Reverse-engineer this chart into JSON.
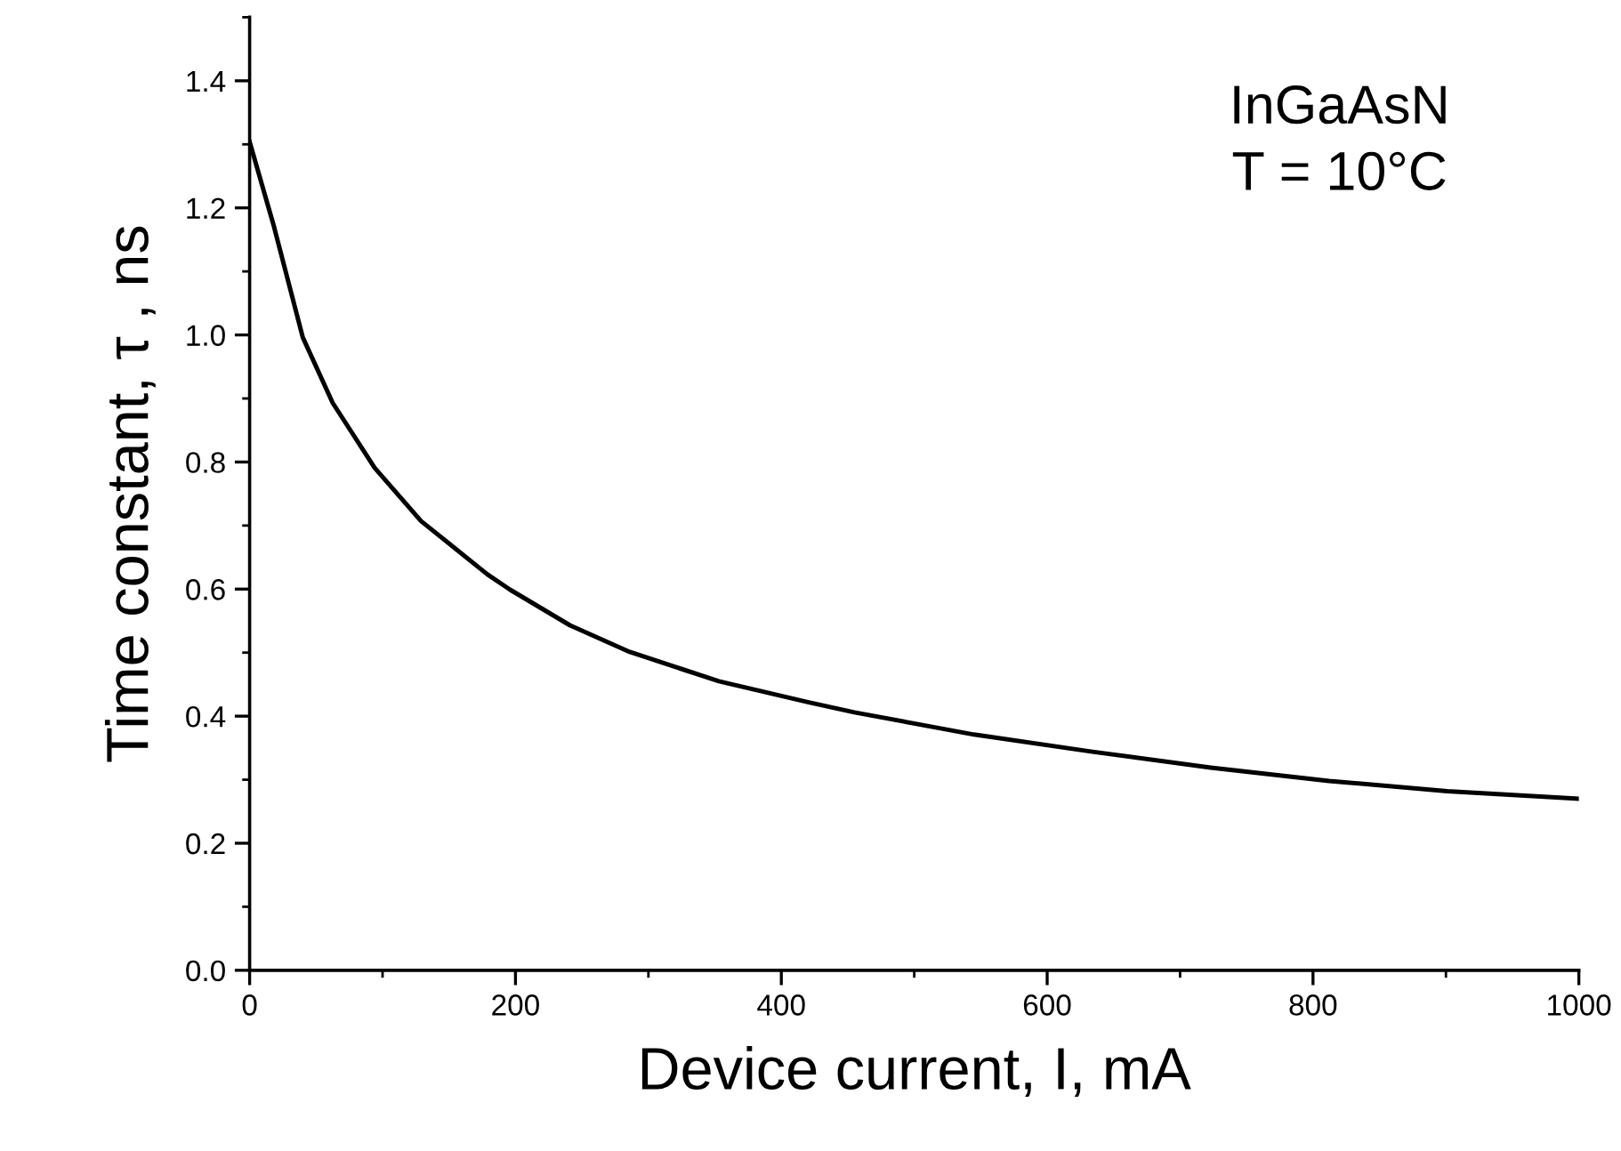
{
  "chart_data": {
    "type": "line",
    "xlabel": "Device current, I, mA",
    "ylabel": "Time constant, τ , ns",
    "annotations": [
      "InGaAsN\nT = 10°C"
    ],
    "series": [
      {
        "color": "#000000",
        "x": [
          0,
          18,
          40,
          62.5,
          94,
          129,
          179,
          196,
          241,
          286,
          353,
          420,
          455,
          509,
          545,
          634,
          723,
          812,
          901,
          1000
        ],
        "values": [
          1.304,
          1.173,
          0.996,
          0.893,
          0.791,
          0.707,
          0.623,
          0.599,
          0.543,
          0.501,
          0.455,
          0.422,
          0.406,
          0.385,
          0.371,
          0.344,
          0.319,
          0.298,
          0.282,
          0.27
        ]
      }
    ],
    "xlim": [
      0,
      1000
    ],
    "xticks": [
      0,
      200,
      400,
      600,
      800,
      1000
    ],
    "ylim": [
      0,
      1.5
    ],
    "yticks": [
      {
        "value": 0,
        "label": "0.0"
      },
      0.2,
      0.4,
      0.6,
      0.8,
      {
        "value": 1,
        "label": "1.0"
      },
      1.2,
      1.4
    ],
    "grid": false,
    "legend": false,
    "marker": "none",
    "line_style": "solid"
  }
}
